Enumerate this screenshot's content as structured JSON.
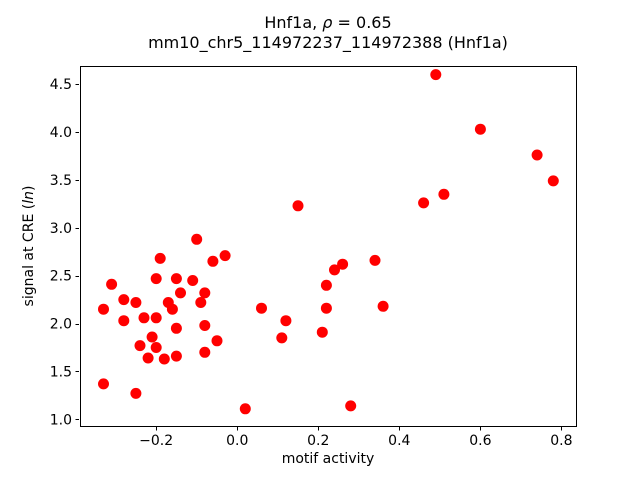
{
  "figure": {
    "title_prefix": "Hnf1a, ",
    "title_symbol": "ρ",
    "title_suffix": " = 0.65",
    "subtitle": "mm10_chr5_114972237_114972388 (Hnf1a)",
    "ylabel_prefix": "signal at CRE (",
    "ylabel_italic": "ln",
    "ylabel_suffix": ")",
    "xlabel": "motif activity"
  },
  "chart_data": {
    "type": "scatter",
    "title": "Hnf1a, ρ = 0.65",
    "subtitle": "mm10_chr5_114972237_114972388 (Hnf1a)",
    "xlabel": "motif activity",
    "ylabel": "signal at CRE (ln)",
    "xlim": [
      -0.388,
      0.836
    ],
    "ylim": [
      0.93,
      4.69
    ],
    "xticks": [
      -0.2,
      0.0,
      0.2,
      0.4,
      0.6,
      0.8
    ],
    "xtick_labels": [
      "−0.2",
      "0.0",
      "0.2",
      "0.4",
      "0.6",
      "0.8"
    ],
    "yticks": [
      1.0,
      1.5,
      2.0,
      2.5,
      3.0,
      3.5,
      4.0,
      4.5
    ],
    "ytick_labels": [
      "1.0",
      "1.5",
      "2.0",
      "2.5",
      "3.0",
      "3.5",
      "4.0",
      "4.5"
    ],
    "grid": false,
    "legend_position": "none",
    "marker": {
      "shape": "circle",
      "color": "#ff0000",
      "radius_px": 5.5
    },
    "points": [
      [
        -0.1,
        2.88
      ],
      [
        -0.19,
        2.68
      ],
      [
        -0.06,
        2.65
      ],
      [
        -0.03,
        2.71
      ],
      [
        -0.31,
        2.41
      ],
      [
        -0.2,
        2.47
      ],
      [
        -0.15,
        2.47
      ],
      [
        -0.11,
        2.45
      ],
      [
        -0.14,
        2.32
      ],
      [
        -0.08,
        2.32
      ],
      [
        -0.09,
        2.22
      ],
      [
        -0.28,
        2.25
      ],
      [
        -0.25,
        2.22
      ],
      [
        -0.33,
        2.15
      ],
      [
        -0.17,
        2.22
      ],
      [
        -0.16,
        2.15
      ],
      [
        -0.28,
        2.03
      ],
      [
        -0.23,
        2.06
      ],
      [
        -0.2,
        2.06
      ],
      [
        -0.15,
        1.95
      ],
      [
        -0.08,
        1.98
      ],
      [
        -0.21,
        1.86
      ],
      [
        -0.05,
        1.82
      ],
      [
        -0.24,
        1.77
      ],
      [
        -0.2,
        1.75
      ],
      [
        -0.08,
        1.7
      ],
      [
        -0.22,
        1.64
      ],
      [
        -0.18,
        1.63
      ],
      [
        -0.15,
        1.66
      ],
      [
        -0.33,
        1.37
      ],
      [
        -0.25,
        1.27
      ],
      [
        0.02,
        1.11
      ],
      [
        0.15,
        3.23
      ],
      [
        0.26,
        2.62
      ],
      [
        0.24,
        2.56
      ],
      [
        0.34,
        2.66
      ],
      [
        0.22,
        2.4
      ],
      [
        0.06,
        2.16
      ],
      [
        0.12,
        2.03
      ],
      [
        0.11,
        1.85
      ],
      [
        0.22,
        2.16
      ],
      [
        0.36,
        2.18
      ],
      [
        0.21,
        1.91
      ],
      [
        0.28,
        1.14
      ],
      [
        0.49,
        4.6
      ],
      [
        0.6,
        4.03
      ],
      [
        0.74,
        3.76
      ],
      [
        0.78,
        3.49
      ],
      [
        0.51,
        3.35
      ],
      [
        0.46,
        3.26
      ]
    ]
  }
}
